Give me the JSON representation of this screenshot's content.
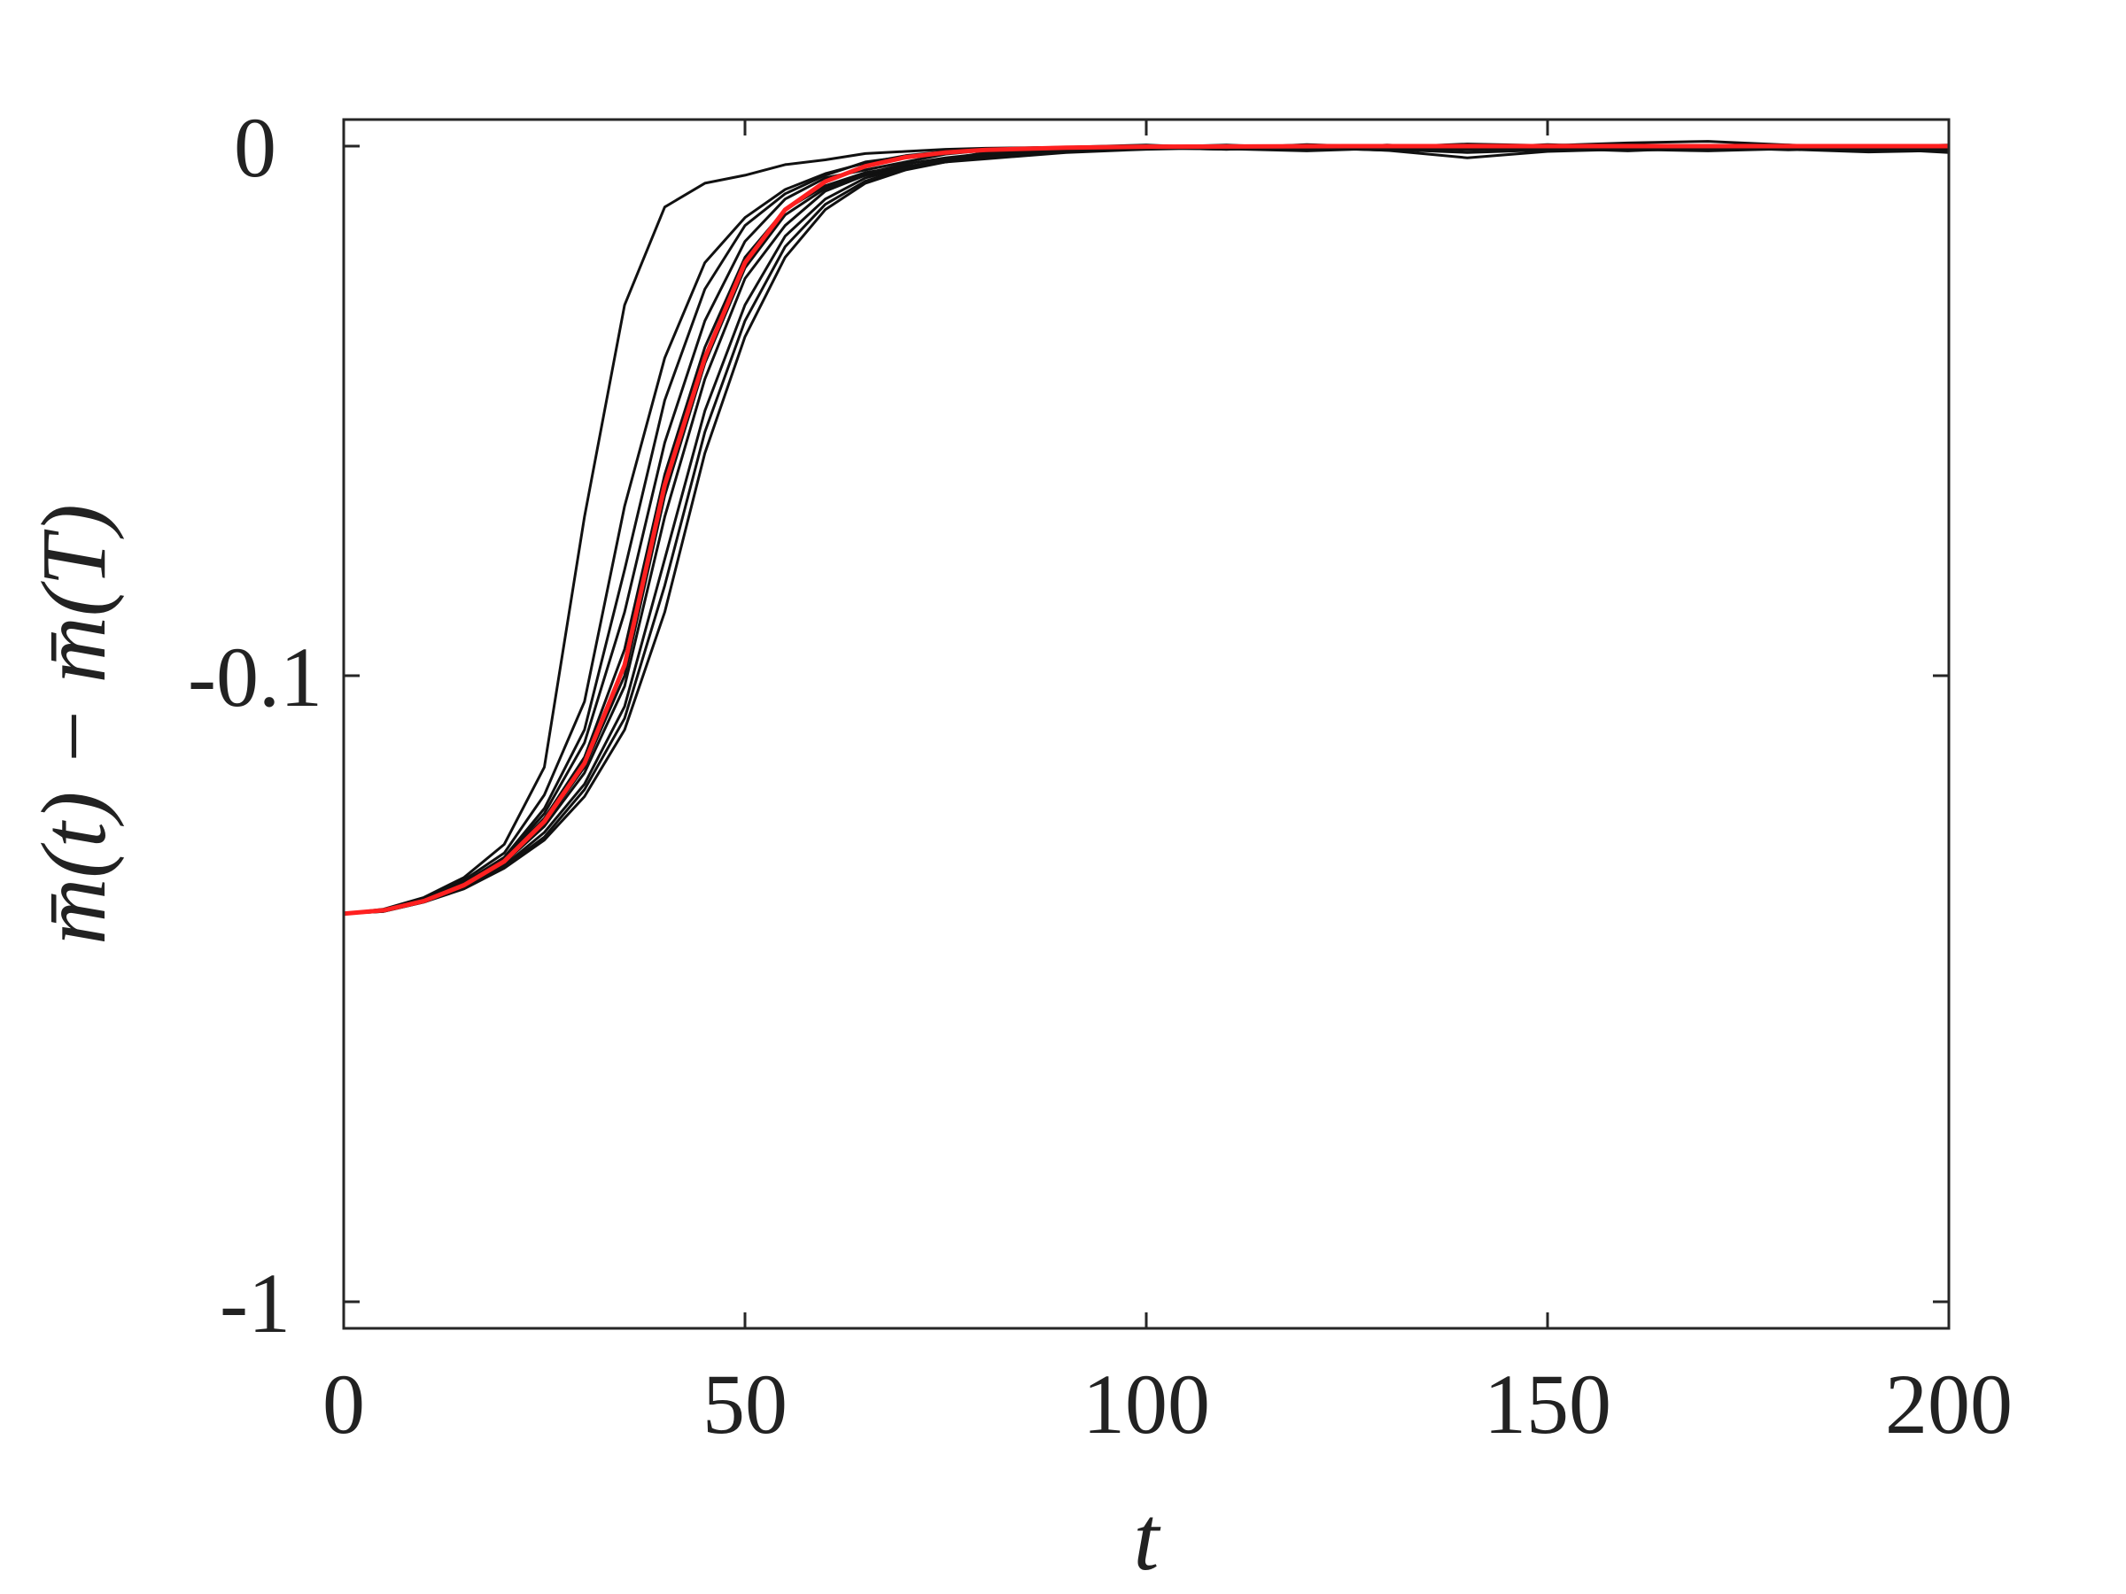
{
  "chart_data": {
    "type": "line",
    "title": "",
    "xlabel": "t",
    "ylabel": "m̄(t) − m̄(T)",
    "xlim": [
      0,
      200
    ],
    "ylim": [
      -1,
      0
    ],
    "y_scale": "symlog",
    "y_linear_threshold": 0.1,
    "x_ticks": [
      0,
      50,
      100,
      150,
      200
    ],
    "x_tick_labels": [
      "0",
      "50",
      "100",
      "150",
      "200"
    ],
    "y_ticks": [
      0,
      -0.1,
      -1
    ],
    "y_tick_labels": [
      "0",
      "-0.1",
      "-1"
    ],
    "grid": false,
    "legend": "none",
    "colors": {
      "mean": "#ff2020",
      "realizations": "#111111",
      "axes": "#262626"
    },
    "series": [
      {
        "color": "#ff2020",
        "x": [
          0,
          5,
          10,
          15,
          20,
          25,
          30,
          35,
          40,
          45,
          50,
          55,
          60,
          65,
          70,
          75,
          80,
          90,
          100,
          125,
          150,
          175,
          200
        ],
        "values": [
          -0.24,
          -0.237,
          -0.229,
          -0.216,
          -0.198,
          -0.171,
          -0.138,
          -0.098,
          -0.064,
          -0.04,
          -0.022,
          -0.012,
          -0.0067,
          -0.0038,
          -0.0021,
          -0.0012,
          -0.0007,
          -0.0003,
          -0.0001,
          0,
          0,
          0,
          0
        ]
      },
      {
        "color": "#111111",
        "x": [
          0,
          5,
          10,
          15,
          20,
          25,
          30,
          35,
          40,
          45,
          50,
          55,
          60,
          65,
          70,
          75,
          80,
          90,
          100,
          110,
          120,
          130,
          140,
          150,
          160,
          170,
          180,
          190,
          200
        ],
        "values": [
          -0.24,
          -0.236,
          -0.226,
          -0.21,
          -0.186,
          -0.14,
          -0.07,
          -0.03,
          -0.0115,
          -0.007,
          -0.0055,
          -0.0035,
          -0.0026,
          -0.0014,
          -0.001,
          -0.0006,
          -0.0004,
          -0.0002,
          0.0002,
          -0.0004,
          0.0003,
          -0.0002,
          0.0004,
          0.0001,
          0.0006,
          0.0009,
          0.0002,
          -0.0006,
          -0.0003
        ]
      },
      {
        "color": "#111111",
        "x": [
          0,
          5,
          10,
          15,
          20,
          25,
          30,
          35,
          40,
          45,
          50,
          55,
          60,
          65,
          70,
          75,
          80,
          90,
          100,
          110,
          120,
          130,
          140,
          150,
          160,
          170,
          180,
          190,
          200
        ],
        "values": [
          -0.24,
          -0.237,
          -0.227,
          -0.212,
          -0.192,
          -0.155,
          -0.11,
          -0.068,
          -0.04,
          -0.022,
          -0.0135,
          -0.0082,
          -0.0052,
          -0.0032,
          -0.0018,
          -0.001,
          -0.0005,
          -0.0002,
          0.0001,
          -0.0003,
          -0.0005,
          0.0002,
          -0.0004,
          -0.0006,
          0.0002,
          -0.0003,
          -0.0001,
          -0.0006,
          -0.0002
        ]
      },
      {
        "color": "#111111",
        "x": [
          0,
          5,
          10,
          15,
          20,
          25,
          30,
          35,
          40,
          45,
          50,
          55,
          60,
          65,
          70,
          75,
          80,
          90,
          100,
          110,
          120,
          130,
          140,
          150,
          160,
          170,
          180,
          190,
          200
        ],
        "values": [
          -0.24,
          -0.237,
          -0.228,
          -0.214,
          -0.196,
          -0.166,
          -0.128,
          -0.088,
          -0.056,
          -0.033,
          -0.018,
          -0.01,
          -0.006,
          -0.0045,
          -0.003,
          -0.0015,
          -0.0008,
          -0.0003,
          -0.0002,
          0.0002,
          -0.0003,
          -0.0008,
          -0.0004,
          0.0003,
          -0.0002,
          -0.0005,
          -0.0003,
          -0.0001,
          -0.0008
        ]
      },
      {
        "color": "#111111",
        "x": [
          0,
          5,
          10,
          15,
          20,
          25,
          30,
          35,
          40,
          45,
          50,
          55,
          60,
          65,
          70,
          75,
          80,
          90,
          100,
          110,
          120,
          130,
          140,
          150,
          160,
          170,
          180,
          190,
          200
        ],
        "values": [
          -0.24,
          -0.237,
          -0.229,
          -0.216,
          -0.199,
          -0.174,
          -0.143,
          -0.104,
          -0.07,
          -0.044,
          -0.025,
          -0.015,
          -0.0085,
          -0.0055,
          -0.004,
          -0.0025,
          -0.0012,
          -0.0005,
          -0.0001,
          -0.0004,
          -0.0002,
          -0.0006,
          -0.0012,
          -0.0007,
          -0.0002,
          -0.0004,
          -0.0006,
          -0.0002,
          -0.0005
        ]
      },
      {
        "color": "#111111",
        "x": [
          0,
          5,
          10,
          15,
          20,
          25,
          30,
          35,
          40,
          45,
          50,
          55,
          60,
          65,
          70,
          75,
          80,
          90,
          100,
          110,
          120,
          130,
          140,
          150,
          160,
          170,
          180,
          190,
          200
        ],
        "values": [
          -0.24,
          -0.237,
          -0.229,
          -0.217,
          -0.201,
          -0.178,
          -0.149,
          -0.112,
          -0.078,
          -0.05,
          -0.03,
          -0.017,
          -0.01,
          -0.006,
          -0.004,
          -0.003,
          -0.0018,
          -0.0008,
          -0.0004,
          -0.0001,
          -0.0005,
          -0.0003,
          -0.0007,
          -0.0004,
          -0.0009,
          -0.0003,
          -0.0006,
          -0.0011,
          -0.0008
        ]
      },
      {
        "color": "#111111",
        "x": [
          0,
          5,
          10,
          15,
          20,
          25,
          30,
          35,
          40,
          45,
          50,
          55,
          60,
          65,
          70,
          75,
          80,
          90,
          100,
          110,
          120,
          130,
          140,
          150,
          160,
          170,
          180,
          190,
          200
        ],
        "values": [
          -0.24,
          -0.237,
          -0.228,
          -0.215,
          -0.197,
          -0.169,
          -0.135,
          -0.095,
          -0.062,
          -0.038,
          -0.021,
          -0.012,
          -0.0075,
          -0.005,
          -0.0038,
          -0.003,
          -0.0024,
          -0.0012,
          -0.0006,
          -0.0003,
          -0.0001,
          -0.0004,
          -0.0002,
          -0.0005,
          -0.0008,
          -0.0005,
          -0.0002,
          -0.0004,
          -0.0006
        ]
      },
      {
        "color": "#111111",
        "x": [
          0,
          5,
          10,
          15,
          20,
          25,
          30,
          35,
          40,
          45,
          50,
          55,
          60,
          65,
          70,
          75,
          80,
          90,
          100,
          110,
          120,
          130,
          140,
          150,
          160,
          170,
          180,
          190,
          200
        ],
        "values": [
          -0.24,
          -0.238,
          -0.23,
          -0.219,
          -0.203,
          -0.183,
          -0.156,
          -0.122,
          -0.088,
          -0.058,
          -0.036,
          -0.021,
          -0.012,
          -0.007,
          -0.0045,
          -0.003,
          -0.002,
          -0.001,
          -0.0003,
          -0.0006,
          -0.0002,
          -0.0008,
          -0.0022,
          -0.001,
          -0.0006,
          -0.0009,
          -0.0005,
          -0.0007,
          -0.001
        ]
      },
      {
        "color": "#111111",
        "x": [
          0,
          5,
          10,
          15,
          20,
          25,
          30,
          35,
          40,
          45,
          50,
          55,
          60,
          65,
          70,
          75,
          80,
          90,
          100,
          110,
          120,
          130,
          140,
          150,
          160,
          170,
          180,
          190,
          200
        ],
        "values": [
          -0.24,
          -0.238,
          -0.23,
          -0.218,
          -0.202,
          -0.181,
          -0.152,
          -0.117,
          -0.083,
          -0.054,
          -0.033,
          -0.019,
          -0.011,
          -0.0066,
          -0.0042,
          -0.0028,
          -0.0016,
          -0.0006,
          -0.0002,
          -0.0005,
          -0.0009,
          -0.0004,
          -0.0006,
          -0.0003,
          -0.0005,
          -0.0002,
          -0.0007,
          -0.0004,
          -0.0012
        ]
      },
      {
        "color": "#111111",
        "x": [
          0,
          5,
          10,
          15,
          20,
          25,
          30,
          35,
          40,
          45,
          50,
          55,
          60,
          65,
          70,
          75,
          80,
          90,
          100,
          110,
          120,
          130,
          140,
          150,
          160,
          170,
          180,
          190,
          200
        ],
        "values": [
          -0.24,
          -0.237,
          -0.228,
          -0.214,
          -0.195,
          -0.163,
          -0.122,
          -0.08,
          -0.048,
          -0.027,
          -0.015,
          -0.009,
          -0.0055,
          -0.003,
          -0.002,
          -0.0012,
          -0.0006,
          -0.0003,
          0.0001,
          -0.0002,
          0.0002,
          -0.0001,
          0.0003,
          -0.0002,
          0.0001,
          -0.0003,
          0.0002,
          -0.0001,
          0.0002
        ]
      },
      {
        "color": "#111111",
        "x": [
          0,
          5,
          10,
          15,
          20,
          25,
          30,
          35,
          40,
          45,
          50,
          55,
          60,
          65,
          70,
          75,
          80,
          90,
          100,
          110,
          120,
          130,
          140,
          150,
          160,
          170,
          180,
          190,
          200
        ],
        "values": [
          -0.24,
          -0.237,
          -0.228,
          -0.215,
          -0.198,
          -0.172,
          -0.14,
          -0.1,
          -0.066,
          -0.041,
          -0.023,
          -0.013,
          -0.008,
          -0.0052,
          -0.0034,
          -0.0022,
          -0.0014,
          -0.0007,
          -0.0003,
          -0.0006,
          -0.0002,
          -0.0005,
          -0.0003,
          -0.0007,
          -0.0004,
          -0.0006,
          -0.0003,
          -0.0005,
          -0.0007
        ]
      }
    ]
  }
}
